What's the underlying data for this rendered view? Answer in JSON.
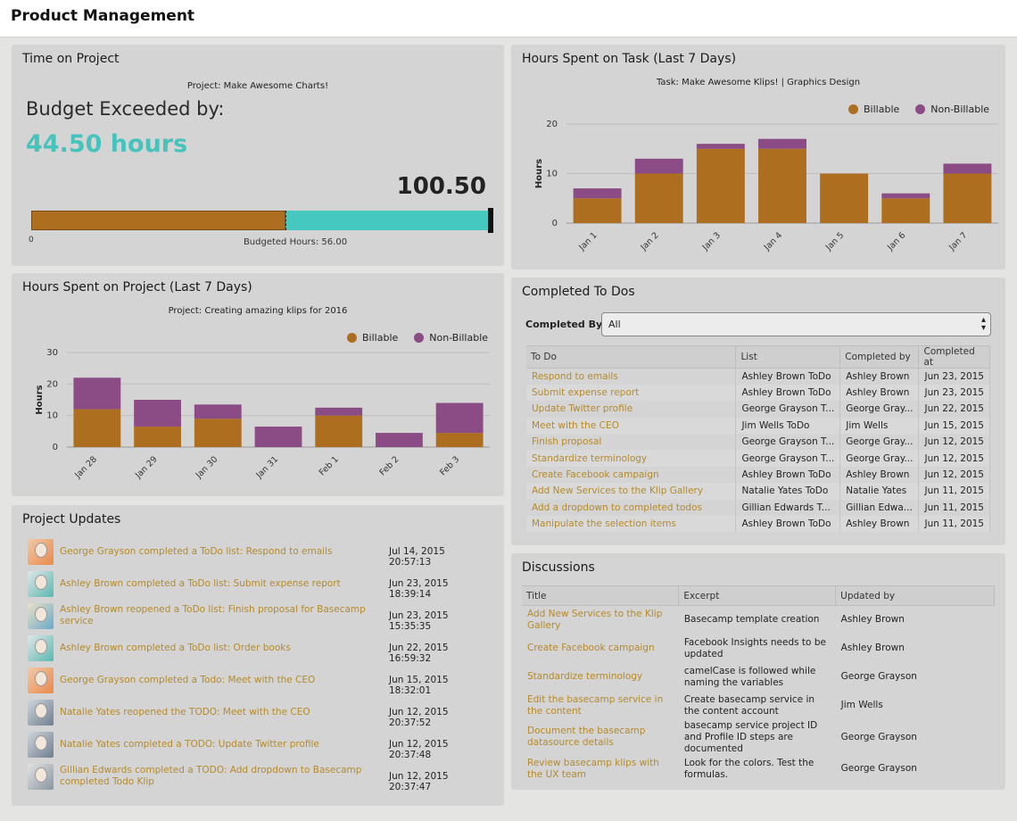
{
  "app": {
    "title": "Product Management"
  },
  "colors": {
    "billable": "#ad6f1f",
    "non_billable": "#8b4b84",
    "accent": "#45c3bc",
    "link": "#b58a2b"
  },
  "time_on_project": {
    "title": "Time on Project",
    "project": "Project: Make Awesome Charts!",
    "budget_label": "Budget Exceeded by:",
    "exceeded": "44.50 hours",
    "total": "100.50",
    "axis_start": "0",
    "budgeted_label": "Budgeted Hours: 56.00",
    "budgeted_hours": 56.0,
    "total_hours": 100.5
  },
  "task_chart": {
    "title": "Hours Spent on Task (Last 7 Days)",
    "subtitle": "Task: Make Awesome Klips! | Graphics Design",
    "legend": [
      "Billable",
      "Non-Billable"
    ]
  },
  "project_chart": {
    "title": "Hours Spent on Project (Last 7 Days)",
    "subtitle": "Project: Creating amazing klips for 2016",
    "legend": [
      "Billable",
      "Non-Billable"
    ]
  },
  "chart_data": [
    {
      "type": "bar",
      "stacked": true,
      "title": "Task: Make Awesome Klips! | Graphics Design",
      "ylabel": "Hours",
      "ylim": [
        0,
        20
      ],
      "yticks": [
        0,
        10,
        20
      ],
      "categories": [
        "Jan 1",
        "Jan 2",
        "Jan 3",
        "Jan 4",
        "Jan 5",
        "Jan 6",
        "Jan 7"
      ],
      "series": [
        {
          "name": "Billable",
          "values": [
            5,
            10,
            15,
            15,
            10,
            5,
            10
          ]
        },
        {
          "name": "Non-Billable",
          "values": [
            2,
            3,
            1,
            2,
            0,
            1,
            2
          ]
        }
      ],
      "legend_position": "top-right",
      "grid": true
    },
    {
      "type": "bar",
      "stacked": true,
      "title": "Project: Creating amazing klips for 2016",
      "ylabel": "Hours",
      "ylim": [
        0,
        30
      ],
      "yticks": [
        0,
        10,
        20,
        30
      ],
      "categories": [
        "Jan 28",
        "Jan 29",
        "Jan 30",
        "Jan 31",
        "Feb 1",
        "Feb 2",
        "Feb 3"
      ],
      "series": [
        {
          "name": "Billable",
          "values": [
            12,
            6.5,
            9,
            0,
            10,
            0,
            4.5
          ]
        },
        {
          "name": "Non-Billable",
          "values": [
            10,
            8.5,
            4.5,
            6.5,
            2.5,
            4.5,
            9.5
          ]
        }
      ],
      "legend_position": "top-right",
      "grid": true
    }
  ],
  "todos": {
    "title": "Completed To Dos",
    "filter_label": "Completed By:",
    "filter_value": "All",
    "columns": [
      "To Do",
      "List",
      "Completed by",
      "Completed at"
    ],
    "rows": [
      [
        "Respond to emails",
        "Ashley Brown ToDo",
        "Ashley Brown",
        "Jun 23, 2015"
      ],
      [
        "Submit expense report",
        "Ashley Brown ToDo",
        "Ashley Brown",
        "Jun 23, 2015"
      ],
      [
        "Update Twitter profile",
        "George Grayson T...",
        "George Gray...",
        "Jun 22, 2015"
      ],
      [
        "Meet with the CEO",
        "Jim Wells ToDo",
        "Jim Wells",
        "Jun 15, 2015"
      ],
      [
        "Finish proposal",
        "George Grayson T...",
        "George Gray...",
        "Jun 12, 2015"
      ],
      [
        "Standardize terminology",
        "George Grayson T...",
        "George Gray...",
        "Jun 12, 2015"
      ],
      [
        "Create Facebook campaign",
        "Ashley Brown ToDo",
        "Ashley Brown",
        "Jun 12, 2015"
      ],
      [
        "Add New Services to the Klip Gallery",
        "Natalie Yates ToDo",
        "Natalie Yates",
        "Jun 11, 2015"
      ],
      [
        "Add a dropdown to completed todos",
        "Gillian Edwards T...",
        "Gillian Edwa...",
        "Jun 11, 2015"
      ],
      [
        "Manipulate the selection items",
        "Ashley Brown ToDo",
        "Ashley Brown",
        "Jun 11, 2015"
      ]
    ]
  },
  "updates": {
    "title": "Project Updates",
    "items": [
      {
        "text": "George Grayson completed a ToDo list: Respond to emails",
        "time": "Jul 14, 2015 20:57:13"
      },
      {
        "text": "Ashley Brown completed a ToDo list: Submit expense report",
        "time": "Jun 23, 2015 18:39:14"
      },
      {
        "text": "Ashley Brown reopened a ToDo list: Finish proposal for Basecamp service",
        "time": "Jun 23, 2015 15:35:35"
      },
      {
        "text": "Ashley Brown completed a ToDo list: Order books",
        "time": "Jun 22, 2015 16:59:32"
      },
      {
        "text": "George Grayson completed a Todo: Meet with the CEO",
        "time": "Jun 15, 2015 18:32:01"
      },
      {
        "text": "Natalie Yates reopened the TODO: Meet with the CEO",
        "time": "Jun 12, 2015 20:37:52"
      },
      {
        "text": "Natalie Yates completed a TODO: Update Twitter profile",
        "time": "Jun 12, 2015 20:37:48"
      },
      {
        "text": "Gillian Edwards completed a TODO: Add dropdown to Basecamp completed Todo Klip",
        "time": "Jun 12, 2015 20:37:47"
      }
    ]
  },
  "discussions": {
    "title": "Discussions",
    "columns": [
      "Title",
      "Excerpt",
      "Updated by"
    ],
    "rows": [
      [
        "Add New Services to the Klip Gallery",
        "Basecamp template creation",
        "Ashley Brown"
      ],
      [
        "Create Facebook campaign",
        "Facebook Insights needs to be updated",
        "Ashley Brown"
      ],
      [
        "Standardize terminology",
        "camelCase is followed while naming the variables",
        "George Grayson"
      ],
      [
        "Edit the basecamp service in the content",
        "Create basecamp service in the content account",
        "Jim Wells"
      ],
      [
        "Document the basecamp datasource details",
        "basecamp service project ID and Profile ID steps are documented",
        "George Grayson"
      ],
      [
        "Review basecamp klips with the UX team",
        "Look for the colors. Test the formulas.",
        "George Grayson"
      ]
    ]
  }
}
